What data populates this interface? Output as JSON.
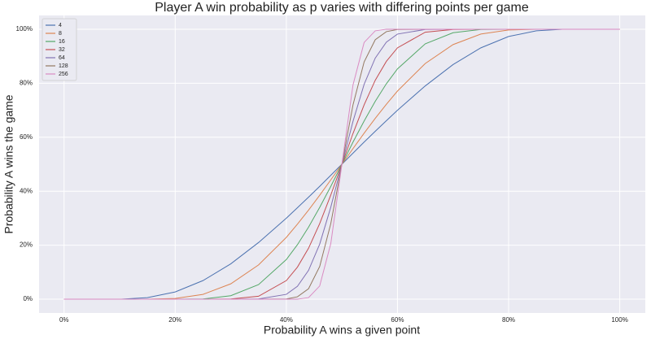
{
  "chart_data": {
    "type": "line",
    "title": "Player A win probability as p varies with differing points per game",
    "xlabel": "Probability A wins a given point",
    "ylabel": "Probability A wins the game",
    "x": [
      0,
      5,
      10,
      15,
      20,
      25,
      30,
      35,
      40,
      42,
      44,
      46,
      48,
      50,
      52,
      54,
      56,
      58,
      60,
      65,
      70,
      75,
      80,
      85,
      90,
      95,
      100
    ],
    "series": [
      {
        "name": "4",
        "color": "#4c72b0",
        "values": [
          0,
          0,
          0,
          0.6,
          2.7,
          6.9,
          13.1,
          21.0,
          30.0,
          33.9,
          37.8,
          41.8,
          45.9,
          50,
          54.1,
          58.2,
          62.2,
          66.1,
          70.0,
          79.0,
          86.9,
          93.1,
          97.3,
          99.4,
          100,
          100,
          100
        ]
      },
      {
        "name": "8",
        "color": "#dd8452",
        "values": [
          0,
          0,
          0,
          0,
          0.3,
          1.8,
          5.7,
          12.7,
          22.9,
          27.8,
          33.0,
          38.5,
          44.2,
          50,
          55.8,
          61.5,
          67.0,
          72.2,
          77.1,
          87.3,
          94.3,
          98.2,
          99.7,
          100,
          100,
          100,
          100
        ]
      },
      {
        "name": "16",
        "color": "#55a868",
        "values": [
          0,
          0,
          0,
          0,
          0,
          0.1,
          1.3,
          5.4,
          14.7,
          20.2,
          26.7,
          34.0,
          41.8,
          50,
          58.2,
          66.0,
          73.3,
          79.8,
          85.3,
          94.6,
          98.7,
          99.9,
          100,
          100,
          100,
          100,
          100
        ]
      },
      {
        "name": "32",
        "color": "#c44e52",
        "values": [
          0,
          0,
          0,
          0,
          0,
          0,
          0.1,
          1.1,
          6.9,
          11.9,
          18.9,
          28.0,
          38.6,
          50,
          61.4,
          72.0,
          81.1,
          88.1,
          93.1,
          98.9,
          99.9,
          100,
          100,
          100,
          100,
          100,
          100
        ]
      },
      {
        "name": "64",
        "color": "#8172b3",
        "values": [
          0,
          0,
          0,
          0,
          0,
          0,
          0,
          0.1,
          1.8,
          4.8,
          10.7,
          20.4,
          34.1,
          50,
          65.9,
          79.6,
          89.3,
          95.2,
          98.2,
          99.9,
          100,
          100,
          100,
          100,
          100,
          100,
          100
        ]
      },
      {
        "name": "128",
        "color": "#937860",
        "values": [
          0,
          0,
          0,
          0,
          0,
          0,
          0,
          0,
          0.1,
          0.9,
          3.9,
          12.1,
          28.0,
          50,
          72.0,
          87.9,
          96.1,
          99.1,
          99.9,
          100,
          100,
          100,
          100,
          100,
          100,
          100,
          100
        ]
      },
      {
        "name": "256",
        "color": "#da8bc3",
        "values": [
          0,
          0,
          0,
          0,
          0,
          0,
          0,
          0,
          0,
          0,
          0.6,
          4.9,
          20.6,
          50,
          79.4,
          95.1,
          99.4,
          100,
          100,
          100,
          100,
          100,
          100,
          100,
          100,
          100,
          100
        ]
      }
    ],
    "xlim": [
      -4.5,
      104.6
    ],
    "ylim": [
      -5.1,
      105.1
    ],
    "xticks": [
      {
        "value": 0,
        "label": "0%"
      },
      {
        "value": 20,
        "label": "20%"
      },
      {
        "value": 40,
        "label": "40%"
      },
      {
        "value": 60,
        "label": "60%"
      },
      {
        "value": 80,
        "label": "80%"
      },
      {
        "value": 100,
        "label": "100%"
      }
    ],
    "yticks": [
      {
        "value": 0,
        "label": "0%"
      },
      {
        "value": 20,
        "label": "20%"
      },
      {
        "value": 40,
        "label": "40%"
      },
      {
        "value": 60,
        "label": "60%"
      },
      {
        "value": 80,
        "label": "80%"
      },
      {
        "value": 100,
        "label": "100%"
      }
    ],
    "grid": true,
    "legend": "upper-left"
  }
}
